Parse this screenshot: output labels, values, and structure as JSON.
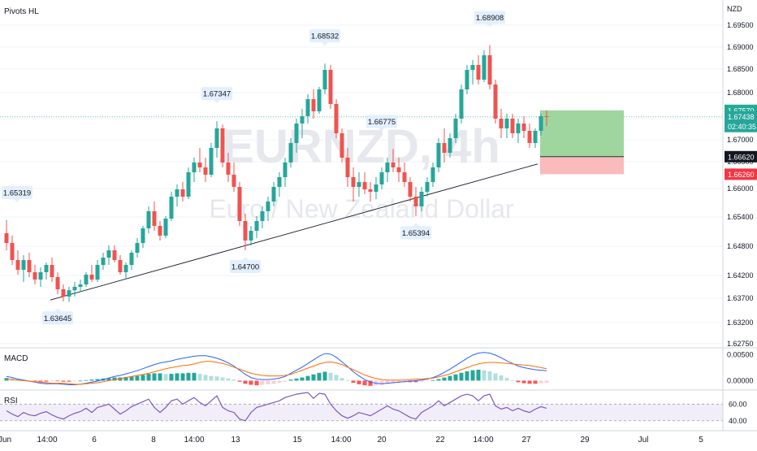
{
  "chart_data": {
    "type": "candlestick",
    "indicator_title": "Pivots HL",
    "watermark": {
      "symbol": "EURNZD, 4h",
      "description": "Euro / New Zealand Dollar"
    },
    "currency": "NZD",
    "y_ticks": [
      "1.69500",
      "1.69000",
      "1.68500",
      "1.68000",
      "1.67500",
      "1.67000",
      "1.66500",
      "1.66000",
      "1.65400",
      "1.64800",
      "1.64200",
      "1.63700",
      "1.63200",
      "1.62750"
    ],
    "x_ticks": [
      "Jun",
      "14:00",
      "6",
      "8",
      "14:00",
      "13",
      "15",
      "14:00",
      "20",
      "22",
      "14:00",
      "27",
      "29",
      "Jul",
      "5"
    ],
    "price_badges": [
      {
        "label": "1.67570",
        "type": "take-profit",
        "value": 1.6757,
        "bg": "#22ab94",
        "fg": "#ffffff"
      },
      {
        "label": "1.67438",
        "sub": "02:40:35",
        "type": "last-price",
        "value": 1.67438,
        "bg": "#26a69a",
        "fg": "#ffffff"
      },
      {
        "label": "1.66620",
        "type": "entry",
        "value": 1.6662,
        "bg": "#131722",
        "fg": "#ffffff"
      },
      {
        "label": "1.66260",
        "type": "stop-loss",
        "value": 1.6626,
        "bg": "#f23645",
        "fg": "#ffffff"
      }
    ],
    "pivots": [
      {
        "label": "1.65319",
        "kind": "high"
      },
      {
        "label": "1.63645",
        "kind": "low"
      },
      {
        "label": "1.67347",
        "kind": "high"
      },
      {
        "label": "1.64700",
        "kind": "low"
      },
      {
        "label": "1.68532",
        "kind": "high"
      },
      {
        "label": "1.66775",
        "kind": "high"
      },
      {
        "label": "1.65394",
        "kind": "low"
      },
      {
        "label": "1.68908",
        "kind": "high"
      }
    ],
    "trendline": {
      "from": 1.6368,
      "to": 1.6647
    },
    "position": {
      "entry": 1.6662,
      "target": 1.6757,
      "stop": 1.6626
    },
    "candles": [
      [
        1.6505,
        1.6532,
        1.647,
        1.6485
      ],
      [
        1.6485,
        1.65,
        1.644,
        1.645
      ],
      [
        1.645,
        1.647,
        1.642,
        1.643
      ],
      [
        1.643,
        1.646,
        1.6405,
        1.645
      ],
      [
        1.645,
        1.6465,
        1.6415,
        1.6425
      ],
      [
        1.6425,
        1.644,
        1.64,
        1.641
      ],
      [
        1.641,
        1.6435,
        1.6395,
        1.6425
      ],
      [
        1.6425,
        1.6445,
        1.641,
        1.644
      ],
      [
        1.644,
        1.6455,
        1.6405,
        1.6415
      ],
      [
        1.6415,
        1.6425,
        1.638,
        1.639
      ],
      [
        1.639,
        1.64,
        1.6365,
        1.6375
      ],
      [
        1.6375,
        1.6395,
        1.6364,
        1.6388
      ],
      [
        1.6388,
        1.6405,
        1.6375,
        1.6395
      ],
      [
        1.6395,
        1.641,
        1.6385,
        1.64
      ],
      [
        1.64,
        1.6425,
        1.6395,
        1.642
      ],
      [
        1.642,
        1.644,
        1.6405,
        1.641
      ],
      [
        1.641,
        1.645,
        1.6405,
        1.644
      ],
      [
        1.644,
        1.6465,
        1.643,
        1.6455
      ],
      [
        1.6455,
        1.648,
        1.644,
        1.647
      ],
      [
        1.647,
        1.648,
        1.6445,
        1.645
      ],
      [
        1.645,
        1.646,
        1.642,
        1.6425
      ],
      [
        1.6425,
        1.6445,
        1.641,
        1.644
      ],
      [
        1.644,
        1.647,
        1.643,
        1.6465
      ],
      [
        1.6465,
        1.6495,
        1.6455,
        1.6485
      ],
      [
        1.6485,
        1.652,
        1.6475,
        1.6515
      ],
      [
        1.6515,
        1.656,
        1.6505,
        1.655
      ],
      [
        1.655,
        1.657,
        1.651,
        1.652
      ],
      [
        1.652,
        1.653,
        1.649,
        1.65
      ],
      [
        1.65,
        1.654,
        1.6495,
        1.6535
      ],
      [
        1.6535,
        1.659,
        1.653,
        1.658
      ],
      [
        1.658,
        1.6605,
        1.656,
        1.6595
      ],
      [
        1.6595,
        1.661,
        1.657,
        1.658
      ],
      [
        1.658,
        1.664,
        1.6575,
        1.663
      ],
      [
        1.663,
        1.666,
        1.661,
        1.665
      ],
      [
        1.665,
        1.668,
        1.663,
        1.664
      ],
      [
        1.664,
        1.666,
        1.661,
        1.6625
      ],
      [
        1.6625,
        1.669,
        1.662,
        1.668
      ],
      [
        1.668,
        1.6735,
        1.666,
        1.672
      ],
      [
        1.672,
        1.6728,
        1.664,
        1.665
      ],
      [
        1.665,
        1.667,
        1.661,
        1.6625
      ],
      [
        1.6625,
        1.665,
        1.659,
        1.66
      ],
      [
        1.66,
        1.661,
        1.652,
        1.653
      ],
      [
        1.653,
        1.6545,
        1.647,
        1.649
      ],
      [
        1.649,
        1.652,
        1.648,
        1.651
      ],
      [
        1.651,
        1.654,
        1.6495,
        1.653
      ],
      [
        1.653,
        1.656,
        1.6515,
        1.655
      ],
      [
        1.655,
        1.658,
        1.653,
        1.657
      ],
      [
        1.657,
        1.661,
        1.656,
        1.66
      ],
      [
        1.66,
        1.663,
        1.658,
        1.662
      ],
      [
        1.662,
        1.666,
        1.66,
        1.665
      ],
      [
        1.665,
        1.67,
        1.664,
        1.669
      ],
      [
        1.669,
        1.674,
        1.667,
        1.673
      ],
      [
        1.673,
        1.676,
        1.67,
        1.6745
      ],
      [
        1.6745,
        1.679,
        1.673,
        1.678
      ],
      [
        1.678,
        1.68,
        1.674,
        1.6755
      ],
      [
        1.6755,
        1.6805,
        1.675,
        1.68
      ],
      [
        1.68,
        1.6853,
        1.679,
        1.684
      ],
      [
        1.684,
        1.685,
        1.676,
        1.677
      ],
      [
        1.677,
        1.678,
        1.67,
        1.671
      ],
      [
        1.671,
        1.672,
        1.665,
        1.666
      ],
      [
        1.666,
        1.668,
        1.66,
        1.662
      ],
      [
        1.662,
        1.664,
        1.657,
        1.66
      ],
      [
        1.66,
        1.663,
        1.658,
        1.661
      ],
      [
        1.661,
        1.663,
        1.6585,
        1.6595
      ],
      [
        1.6595,
        1.661,
        1.657,
        1.659
      ],
      [
        1.659,
        1.662,
        1.6575,
        1.6605
      ],
      [
        1.6605,
        1.664,
        1.6595,
        1.663
      ],
      [
        1.663,
        1.666,
        1.661,
        1.665
      ],
      [
        1.665,
        1.6678,
        1.663,
        1.664
      ],
      [
        1.664,
        1.666,
        1.661,
        1.663
      ],
      [
        1.663,
        1.665,
        1.66,
        1.661
      ],
      [
        1.661,
        1.662,
        1.657,
        1.658
      ],
      [
        1.658,
        1.66,
        1.654,
        1.656
      ],
      [
        1.656,
        1.66,
        1.655,
        1.659
      ],
      [
        1.659,
        1.662,
        1.658,
        1.661
      ],
      [
        1.661,
        1.665,
        1.66,
        1.664
      ],
      [
        1.664,
        1.67,
        1.663,
        1.669
      ],
      [
        1.669,
        1.672,
        1.665,
        1.667
      ],
      [
        1.667,
        1.671,
        1.666,
        1.67
      ],
      [
        1.67,
        1.675,
        1.669,
        1.674
      ],
      [
        1.674,
        1.681,
        1.673,
        1.68
      ],
      [
        1.68,
        1.685,
        1.679,
        1.684
      ],
      [
        1.684,
        1.686,
        1.681,
        1.685
      ],
      [
        1.685,
        1.687,
        1.681,
        1.682
      ],
      [
        1.682,
        1.688,
        1.6815,
        1.687
      ],
      [
        1.687,
        1.6891,
        1.68,
        1.681
      ],
      [
        1.681,
        1.682,
        1.673,
        1.674
      ],
      [
        1.674,
        1.676,
        1.67,
        1.672
      ],
      [
        1.672,
        1.675,
        1.67,
        1.674
      ],
      [
        1.674,
        1.675,
        1.67,
        1.671
      ],
      [
        1.671,
        1.674,
        1.669,
        1.673
      ],
      [
        1.673,
        1.6745,
        1.67,
        1.6715
      ],
      [
        1.6715,
        1.673,
        1.668,
        1.669
      ],
      [
        1.669,
        1.672,
        1.668,
        1.6715
      ],
      [
        1.6715,
        1.675,
        1.6705,
        1.6745
      ],
      [
        1.6745,
        1.6757,
        1.6725,
        1.67438
      ]
    ],
    "macd": {
      "label": "MACD",
      "y_ticks": [
        "0.00500",
        "0.00000"
      ],
      "histogram": [
        0.0005,
        0.0004,
        0.0002,
        0.0001,
        0.0,
        -0.0001,
        -0.0002,
        -0.0002,
        -0.0001,
        -0.0001,
        -0.0002,
        -0.0002,
        -0.0001,
        0.0,
        0.0001,
        0.0002,
        0.0003,
        0.0004,
        0.0005,
        0.0006,
        0.0006,
        0.0007,
        0.0008,
        0.0009,
        0.0011,
        0.0013,
        0.0014,
        0.0014,
        0.0013,
        0.0013,
        0.0014,
        0.0014,
        0.0015,
        0.0015,
        0.0013,
        0.0011,
        0.0009,
        0.0008,
        0.0006,
        0.0004,
        0.0002,
        -0.0002,
        -0.0006,
        -0.0008,
        -0.0009,
        -0.0008,
        -0.0007,
        -0.0006,
        -0.0004,
        -0.0002,
        0.0002,
        0.0004,
        0.0006,
        0.0009,
        0.0012,
        0.0015,
        0.0017,
        0.0015,
        0.0011,
        0.0005,
        0.0001,
        -0.0004,
        -0.0007,
        -0.0009,
        -0.001,
        -0.0009,
        -0.0008,
        -0.0006,
        -0.0005,
        -0.0004,
        -0.0003,
        -0.0003,
        -0.0003,
        -0.0002,
        -0.0001,
        0.0001,
        0.0003,
        0.0006,
        0.0009,
        0.0012,
        0.0015,
        0.0018,
        0.002,
        0.0021,
        0.002,
        0.0018,
        0.0014,
        0.001,
        0.0005,
        0.0001,
        -0.0003,
        -0.0005,
        -0.0006,
        -0.0006,
        -0.0005,
        -0.0004
      ],
      "macd_line": [
        0.0008,
        0.0006,
        0.0003,
        0.0001,
        -0.0001,
        -0.0003,
        -0.0005,
        -0.0006,
        -0.0006,
        -0.0006,
        -0.0007,
        -0.0008,
        -0.0008,
        -0.0007,
        -0.0005,
        -0.0003,
        -0.0001,
        0.0002,
        0.0005,
        0.0008,
        0.001,
        0.0013,
        0.0016,
        0.0019,
        0.0023,
        0.0027,
        0.0031,
        0.0034,
        0.0036,
        0.0038,
        0.0041,
        0.0043,
        0.0045,
        0.0047,
        0.0048,
        0.0048,
        0.0046,
        0.0043,
        0.0039,
        0.0034,
        0.0028,
        0.002,
        0.0012,
        0.0006,
        0.0003,
        0.0002,
        0.0002,
        0.0003,
        0.0005,
        0.0008,
        0.0014,
        0.002,
        0.0026,
        0.0033,
        0.004,
        0.0047,
        0.0052,
        0.0051,
        0.0045,
        0.0036,
        0.0027,
        0.0017,
        0.0009,
        0.0002,
        -0.0003,
        -0.0005,
        -0.0006,
        -0.0005,
        -0.0004,
        -0.0003,
        -0.0002,
        -0.0001,
        0.0,
        0.0001,
        0.0003,
        0.0006,
        0.001,
        0.0016,
        0.0022,
        0.0029,
        0.0036,
        0.0043,
        0.0049,
        0.0053,
        0.0054,
        0.0053,
        0.0049,
        0.0044,
        0.0038,
        0.0033,
        0.0028,
        0.0025,
        0.0023,
        0.0021,
        0.002,
        0.0019
      ],
      "signal_line": [
        0.0003,
        0.0002,
        0.0001,
        0.0,
        -0.0001,
        -0.0002,
        -0.0003,
        -0.0004,
        -0.0005,
        -0.0005,
        -0.0005,
        -0.0006,
        -0.0007,
        -0.0007,
        -0.0006,
        -0.0005,
        -0.0004,
        -0.0002,
        0.0,
        0.0002,
        0.0004,
        0.0006,
        0.0008,
        0.001,
        0.0012,
        0.0014,
        0.0017,
        0.002,
        0.0023,
        0.0025,
        0.0027,
        0.0029,
        0.003,
        0.0032,
        0.0035,
        0.0037,
        0.0037,
        0.0035,
        0.0033,
        0.003,
        0.0026,
        0.0022,
        0.0018,
        0.0014,
        0.0012,
        0.001,
        0.0009,
        0.0009,
        0.0009,
        0.001,
        0.0012,
        0.0016,
        0.002,
        0.0024,
        0.0028,
        0.0032,
        0.0035,
        0.0036,
        0.0034,
        0.0031,
        0.0026,
        0.0021,
        0.0016,
        0.0011,
        0.0007,
        0.0004,
        0.0002,
        0.0001,
        0.0001,
        0.0001,
        0.0001,
        0.0002,
        0.0003,
        0.0003,
        0.0004,
        0.0005,
        0.0007,
        0.001,
        0.0013,
        0.0017,
        0.0021,
        0.0025,
        0.0029,
        0.0032,
        0.0034,
        0.0035,
        0.0035,
        0.0034,
        0.0033,
        0.0032,
        0.0031,
        0.003,
        0.0029,
        0.0027,
        0.0025,
        0.0023
      ]
    },
    "rsi": {
      "label": "RSI",
      "y_ticks": [
        "60.00",
        "40.00"
      ],
      "upper": 60,
      "lower": 40,
      "values": [
        52,
        48,
        45,
        50,
        47,
        46,
        49,
        51,
        47,
        44,
        42,
        46,
        49,
        51,
        55,
        50,
        56,
        58,
        60,
        54,
        48,
        52,
        57,
        60,
        63,
        66,
        56,
        50,
        56,
        64,
        66,
        60,
        64,
        68,
        62,
        58,
        64,
        70,
        56,
        52,
        50,
        42,
        40,
        50,
        56,
        58,
        60,
        62,
        64,
        68,
        70,
        72,
        73,
        74,
        67,
        73,
        72,
        60,
        52,
        46,
        43,
        46,
        50,
        48,
        46,
        50,
        54,
        58,
        54,
        52,
        48,
        44,
        42,
        50,
        54,
        58,
        64,
        58,
        62,
        66,
        70,
        72,
        70,
        64,
        70,
        72,
        58,
        54,
        56,
        52,
        55,
        52,
        50,
        54,
        57,
        55
      ]
    }
  }
}
